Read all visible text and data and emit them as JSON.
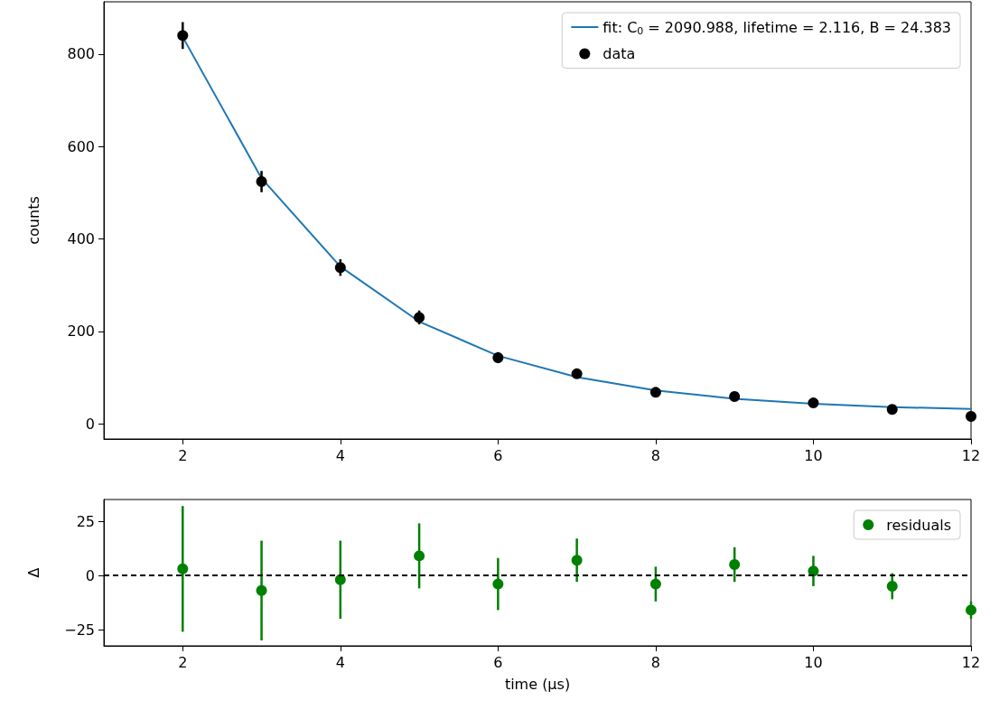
{
  "chart_data": [
    {
      "type": "scatter",
      "ylabel": "counts",
      "xlim": [
        1,
        12
      ],
      "xticks": [
        2,
        4,
        6,
        8,
        10,
        12
      ],
      "ylim": [
        -33,
        913
      ],
      "yticks": [
        0,
        200,
        400,
        600,
        800
      ],
      "grid": false,
      "legend": "top right",
      "marker": "circle",
      "series": [
        {
          "name": "fit: C$_{0}$ = 2090.988, lifetime = 2.116, B = 24.383",
          "type": "line",
          "marker": "none",
          "line_style": "solid",
          "color": "#1f77b4",
          "x": [
            2,
            3,
            4,
            5,
            6,
            7,
            8,
            9,
            10,
            11,
            12
          ],
          "values": [
            837,
            531,
            340,
            221,
            147,
            101,
            72,
            54,
            43,
            36,
            32
          ]
        },
        {
          "name": "data",
          "color": "#000000",
          "x": [
            2,
            3,
            4,
            5,
            6,
            7,
            8,
            9,
            10,
            11,
            12
          ],
          "values": [
            840,
            524,
            338,
            230,
            143,
            108,
            68,
            59,
            45,
            31,
            16
          ],
          "errors": [
            29,
            23,
            18,
            15,
            12,
            10,
            8,
            8,
            7,
            6,
            4
          ]
        }
      ]
    },
    {
      "type": "scatter",
      "xlabel": "time (μs)",
      "ylabel": "Δ",
      "xlim": [
        1,
        12
      ],
      "xticks": [
        2,
        4,
        6,
        8,
        10,
        12
      ],
      "ylim": [
        -32.5,
        35
      ],
      "yticks": [
        -25,
        0,
        25
      ],
      "grid": false,
      "legend": "top right",
      "marker": "circle",
      "ref_lines": [
        {
          "axis": "y",
          "value": 0,
          "color": "#000000",
          "line_style": "dashed"
        }
      ],
      "series": [
        {
          "name": "residuals",
          "color": "#008000",
          "x": [
            2,
            3,
            4,
            5,
            6,
            7,
            8,
            9,
            10,
            11,
            12
          ],
          "values": [
            3,
            -7,
            -2,
            9,
            -4,
            7,
            -4,
            5,
            2,
            -5,
            -16
          ],
          "errors": [
            29,
            23,
            18,
            15,
            12,
            10,
            8,
            8,
            7,
            6,
            4
          ]
        }
      ]
    }
  ]
}
